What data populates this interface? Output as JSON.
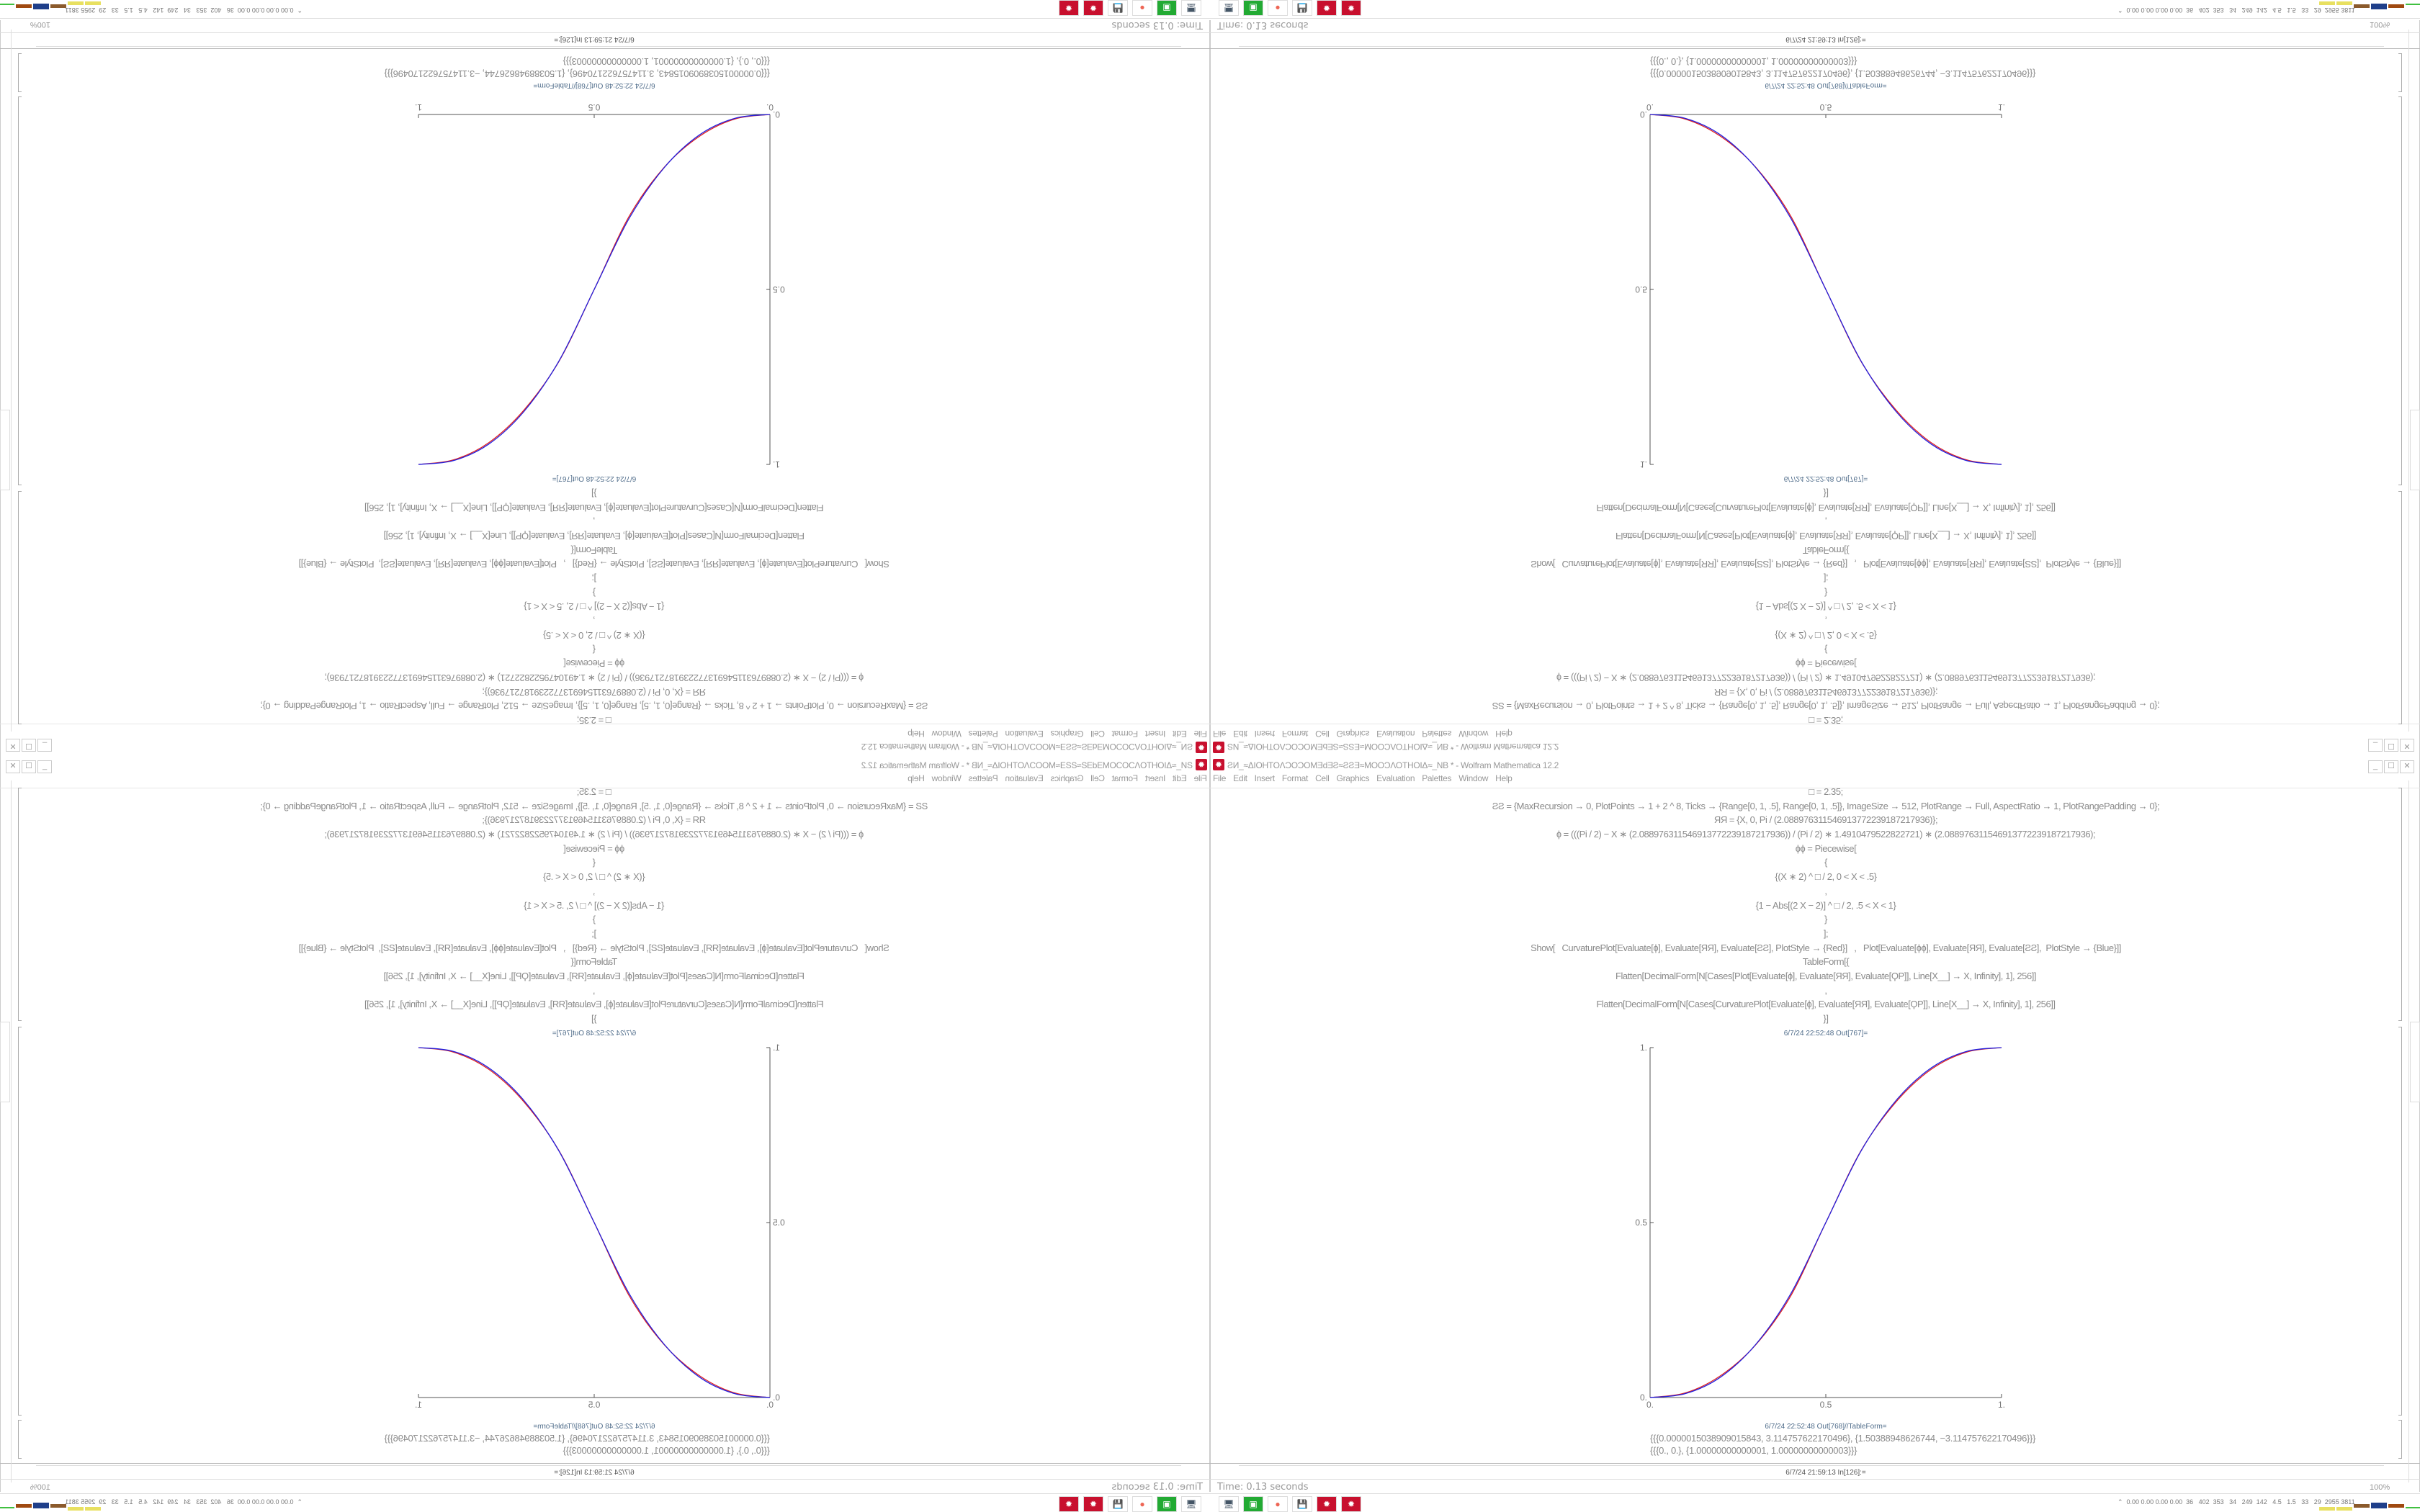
{
  "window": {
    "title": "ƧИ_≈ΔIOHTOΛƆOƆOMƎdƎƧ≈ƧƧƎ≈MOOƆΛOTHOIΔ≈_NB * - Wolfram Mathematica 12.2",
    "icon": "mathematica-gear-icon",
    "buttons": {
      "minimize": "_",
      "maximize": "☐",
      "close": "✕"
    }
  },
  "menu": [
    "File",
    "Edit",
    "Insert",
    "Format",
    "Cell",
    "Graphics",
    "Evaluation",
    "Palettes",
    "Window",
    "Help"
  ],
  "notebook": {
    "code_lines": [
      "□ = 2.35;",
      "ƧƧ = {MaxRecursion → 0, PlotPoints → 1 + 2 ^ 8, Ticks → {Range[0, 1, .5], Range[0, 1, .5]}, ImageSize → 512, PlotRange → Full, AspectRatio → 1, PlotRangePadding → 0};",
      "ЯЯ = {X, 0, Pi / (2.088976311546913772239187217936)};",
      "ɸ = (((Pi / 2) − X ∗ (2.088976311546913772239187217936)) / (Pi / 2) ∗ 1.4910479522822721) ∗ (2.088976311546913772239187217936);",
      "ɸɸ = Piecewise[",
      "{",
      "{(X ∗ 2) ^ □ / 2, 0 < X < .5}",
      ",",
      "{1 − Abs[(2 X − 2)] ^ □ / 2, .5 < X < 1}",
      "}",
      "];",
      "Show[   CurvaturePlot[Evaluate[ɸ], Evaluate[ЯЯ], Evaluate[ƧƧ], PlotStyle → {Red}]   ,   Plot[Evaluate[ɸɸ], Evaluate[ЯЯ], Evaluate[ƧƧ],  PlotStyle → {Blue}]]",
      "TableForm[{",
      "Flatten[DecimalForm[N[Cases[Plot[Evaluate[ɸ], Evaluate[ЯЯ], Evaluate[ϘP]], Line[X__] → X, Infinity], 1], 256]]",
      ",",
      "Flatten[DecimalForm[N[Cases[CurvaturePlot[Evaluate[ɸ], Evaluate[ЯЯ], Evaluate[ϘP]], Line[X__] → X, Infinity], 1], 256]]",
      "}]"
    ],
    "out_plot_label": "6/7/24 22:52:48 Out[767]=",
    "out_table_label": "6/7/24 22:52:48 Out[768]//TableForm=",
    "table_rows": [
      "{{{0.0000015038909015843, 3.114757622170496}, {1.50388948626744, −3.114757622170496}}}",
      "{{{0., 0.}, {1.00000000000001, 1.00000000000003}}}"
    ],
    "next_input_label": "6/7/24 21:59:13 In[126]:="
  },
  "chart_data": {
    "type": "line",
    "x": [
      0,
      0.1,
      0.2,
      0.3,
      0.4,
      0.5,
      0.6,
      0.7,
      0.8,
      0.9,
      1
    ],
    "series": [
      {
        "color": "#e02020",
        "values": [
          0,
          0.013,
          0.062,
          0.15,
          0.29,
          0.5,
          0.705,
          0.845,
          0.938,
          0.987,
          1
        ]
      },
      {
        "color": "#2020e0",
        "values": [
          0,
          0.011,
          0.058,
          0.151,
          0.296,
          0.5,
          0.704,
          0.849,
          0.942,
          0.989,
          1
        ]
      }
    ],
    "xticks": [
      "0.",
      "0.5",
      "1."
    ],
    "yticks": [
      "0.",
      "0.5",
      "1."
    ],
    "xlim": [
      0,
      1
    ],
    "ylim": [
      0,
      1
    ],
    "grid": false
  },
  "status": {
    "time": "Time: 0.13 seconds",
    "zoom": "100%"
  },
  "taskbar": {
    "icons": [
      "network-monitor-icon",
      "terminal-app-icon",
      "firefox-icon",
      "floppy-64-icon",
      "mathematica-icon",
      "mathematica-icon"
    ],
    "stats": "⌃  0.00 0.00 0.00 0.00  36   402  353   34   249  142   4.5   1.5   33   29  2955 3811",
    "bar_colors": [
      "#e8e060",
      "#e8e060",
      "#8b5a2b",
      "#1f3f8a",
      "#a04a10",
      "#40c040"
    ]
  }
}
